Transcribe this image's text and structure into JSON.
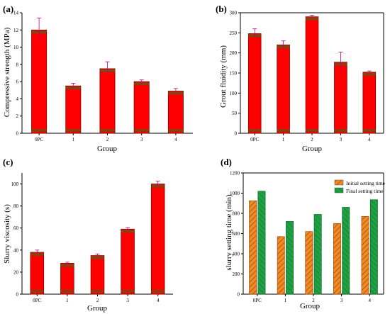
{
  "panels": [
    {
      "id": "a",
      "label": "(a)"
    },
    {
      "id": "b",
      "label": "(b)"
    },
    {
      "id": "c",
      "label": "(c)"
    },
    {
      "id": "d",
      "label": "(d)"
    }
  ],
  "colors": {
    "red_bar": "#ff0000",
    "red_bar_edge": "#8b0000",
    "dark_band": "#1f7a1f",
    "orange_bar": "#f08a24",
    "green_bar": "#1fa043",
    "error_bar": "#c0007a",
    "axis": "#000000"
  },
  "chart_data": [
    {
      "panel": "a",
      "type": "bar",
      "title": "",
      "xlabel": "Group",
      "ylabel": "Compressive strength (MPa)",
      "categories": [
        "0PC",
        "1",
        "2",
        "3",
        "4"
      ],
      "values": [
        12.0,
        5.5,
        7.5,
        6.0,
        4.9
      ],
      "errors": [
        1.4,
        0.3,
        0.8,
        0.2,
        0.3
      ],
      "ylim": [
        0,
        14
      ],
      "yticks": [
        0,
        2,
        4,
        6,
        8,
        10,
        12,
        14
      ]
    },
    {
      "panel": "b",
      "type": "bar",
      "title": "",
      "xlabel": "Group",
      "ylabel": "Grout fluidity (mm)",
      "categories": [
        "0PC",
        "1",
        "2",
        "3",
        "4"
      ],
      "values": [
        248,
        220,
        290,
        177,
        152
      ],
      "errors": [
        12,
        10,
        4,
        25,
        3
      ],
      "ylim": [
        0,
        300
      ],
      "yticks": [
        0,
        50,
        100,
        150,
        200,
        250,
        300
      ]
    },
    {
      "panel": "c",
      "type": "bar",
      "title": "",
      "xlabel": "Group",
      "ylabel": "Slurry viscosity (s)",
      "categories": [
        "0PC",
        "1",
        "2",
        "3",
        "4"
      ],
      "values": [
        38,
        28,
        35,
        59,
        100
      ],
      "errors": [
        2,
        1,
        1.5,
        1.5,
        2.5
      ],
      "ylim": [
        0,
        110
      ],
      "yticks": [
        0,
        20,
        40,
        60,
        80,
        100
      ]
    },
    {
      "panel": "d",
      "type": "bar",
      "title": "",
      "xlabel": "Group",
      "ylabel": "slurry setting time (min)",
      "categories": [
        "0PC",
        "1",
        "2",
        "3",
        "4"
      ],
      "series": [
        {
          "name": "Initial setting time",
          "values": [
            925,
            570,
            620,
            700,
            770
          ]
        },
        {
          "name": "Final setting time",
          "values": [
            1020,
            720,
            790,
            860,
            935
          ]
        }
      ],
      "ylim": [
        0,
        1200
      ],
      "yticks": [
        0,
        200,
        400,
        600,
        800,
        1000,
        1200
      ],
      "legend": "top-right"
    }
  ]
}
